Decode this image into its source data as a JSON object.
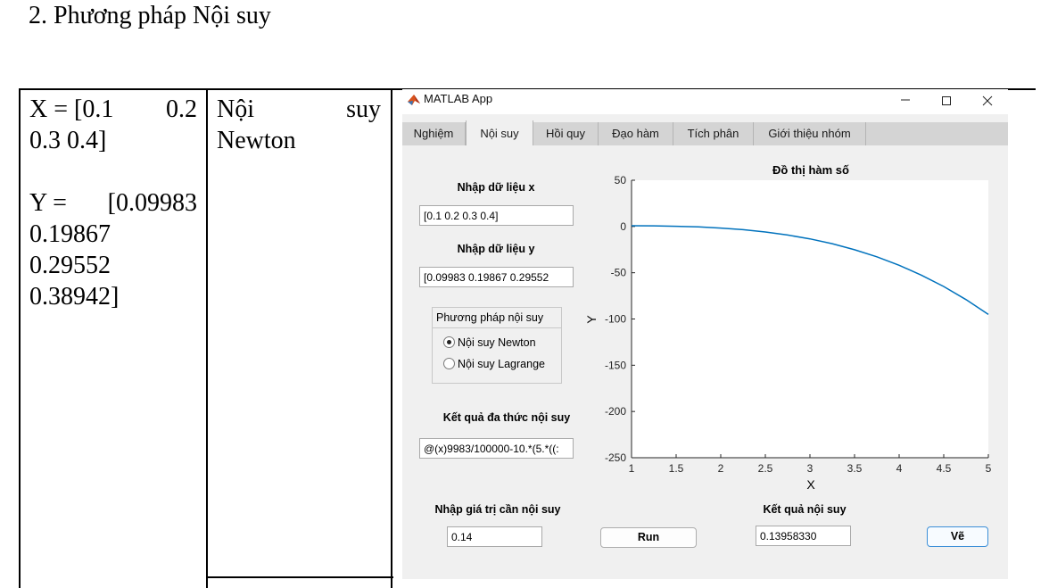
{
  "document": {
    "heading": "2.  Phương pháp Nội suy",
    "cell_data": {
      "x_label": "X = [0.1",
      "x_v2": "0.2",
      "x_line2": "0.3  0.4]",
      "y_line1a": "Y =",
      "y_line1b": "[0.09983",
      "y_line2": "0.19867",
      "y_line3": "0.29552",
      "y_line4": "0.38942]"
    },
    "cell_method": {
      "w1": "Nội",
      "w2": "suy",
      "line2": "Newton"
    }
  },
  "app": {
    "title": "MATLAB App",
    "icon": "matlab-logo-icon",
    "tabs": [
      "Nghiệm",
      "Nội suy",
      "Hồi quy",
      "Đạo hàm",
      "Tích phân",
      "Giới thiệu nhóm"
    ],
    "active_tab": "Nội suy",
    "input_x_label": "Nhập dữ liệu x",
    "input_x_value": "[0.1  0.2  0.3  0.4]",
    "input_y_label": "Nhập dữ liệu y",
    "input_y_value": "[0.09983  0.19867  0.29552",
    "method_group": {
      "title": "Phương pháp nội suy",
      "options": [
        "Nội suy Newton",
        "Nội suy Lagrange"
      ],
      "selected": "Nội suy Newton"
    },
    "poly_label": "Kết quả đa thức nội suy",
    "poly_value": "@(x)9983/100000-10.*(5.*((:",
    "eval_label": "Nhập giá trị cần nội suy",
    "eval_value": "0.14",
    "run_label": "Run",
    "result_label": "Kết quả nội suy",
    "result_value": "0.13958330",
    "plot_button": "Vẽ"
  },
  "chart_data": {
    "type": "line",
    "title": "Đồ thị hàm số",
    "xlabel": "X",
    "ylabel": "Y",
    "xlim": [
      1,
      5
    ],
    "ylim": [
      -250,
      50
    ],
    "xticks": [
      "1",
      "1.5",
      "2",
      "2.5",
      "3",
      "3.5",
      "4",
      "4.5",
      "5"
    ],
    "yticks": [
      "50",
      "0",
      "-50",
      "-100",
      "-150",
      "-200",
      "-250"
    ],
    "grid": false,
    "series": [
      {
        "color": "#0072bd",
        "x": [
          1.0,
          1.25,
          1.5,
          1.75,
          2.0,
          2.25,
          2.5,
          2.75,
          3.0,
          3.25,
          3.5,
          3.75,
          4.0,
          4.25,
          4.5,
          4.75,
          5.0
        ],
        "y": [
          0.84,
          0.67,
          0.27,
          -0.47,
          -1.68,
          -3.45,
          -5.92,
          -9.2,
          -13.4,
          -18.6,
          -25.1,
          -32.8,
          -41.9,
          -52.6,
          -64.9,
          -79.1,
          -95.1
        ]
      }
    ]
  }
}
